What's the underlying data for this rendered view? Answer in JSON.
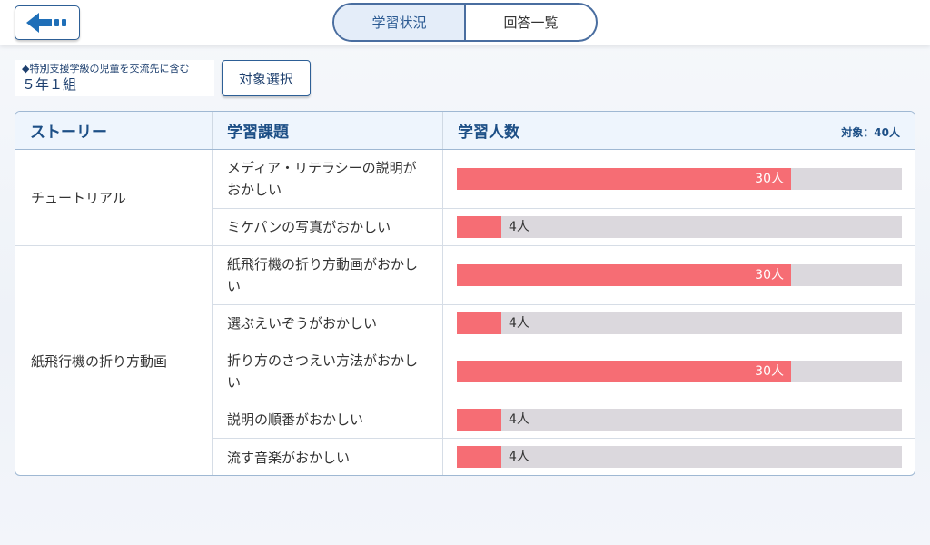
{
  "header": {
    "back_icon": "back-arrow-icon",
    "tabs": [
      {
        "label": "学習状況",
        "active": true
      },
      {
        "label": "回答一覧",
        "active": false
      }
    ]
  },
  "filter": {
    "note": "◆特別支援学級の児童を交流先に含む",
    "class_name": "５年１組",
    "select_label": "対象選択"
  },
  "table": {
    "headers": {
      "story": "ストーリー",
      "task": "学習課題",
      "count": "学習人数"
    },
    "target_label": "対象：40人",
    "total": 40,
    "colors": {
      "bar_fill": "#f66d74",
      "bar_track": "#dbd8dd",
      "header_text": "#1d4f86"
    },
    "stories": [
      {
        "name": "チュートリアル",
        "rows": [
          {
            "task": "メディア・リテラシーの説明がおかしい",
            "count": 30,
            "label": "30人"
          },
          {
            "task": "ミケパンの写真がおかしい",
            "count": 4,
            "label": "4人"
          }
        ]
      },
      {
        "name": "紙飛行機の折り方動画",
        "rows": [
          {
            "task": "紙飛行機の折り方動画がおかしい",
            "count": 30,
            "label": "30人"
          },
          {
            "task": "選ぶえいぞうがおかしい",
            "count": 4,
            "label": "4人"
          },
          {
            "task": "折り方のさつえい方法がおかしい",
            "count": 30,
            "label": "30人"
          },
          {
            "task": "説明の順番がおかしい",
            "count": 4,
            "label": "4人"
          },
          {
            "task": "流す音楽がおかしい",
            "count": 4,
            "label": "4人"
          }
        ]
      }
    ]
  }
}
